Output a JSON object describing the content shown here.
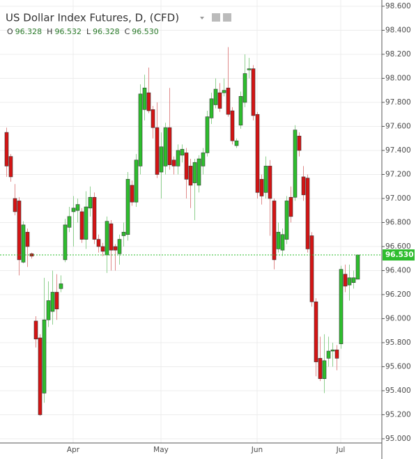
{
  "chart_data": {
    "type": "candlestick",
    "title": "US Dollar Index Futures, D, (CFD)",
    "ohlc_letters": [
      "O",
      "H",
      "L",
      "C"
    ],
    "ohlc_value_labels": [
      "96.328",
      "96.532",
      "96.328",
      "96.530"
    ],
    "last_price": {
      "value": 96.53,
      "label": "96.530"
    },
    "up_color": "#2ebd2e",
    "down_color": "#d41414",
    "grid": true,
    "categories": [
      null,
      null,
      null,
      null,
      null,
      null,
      null,
      null,
      null,
      null,
      null,
      null,
      null,
      null,
      null,
      null,
      "Apr",
      null,
      null,
      null,
      null,
      null,
      null,
      null,
      null,
      null,
      null,
      null,
      null,
      null,
      null,
      null,
      null,
      null,
      null,
      null,
      null,
      "May",
      null,
      null,
      null,
      null,
      null,
      null,
      null,
      null,
      null,
      null,
      null,
      null,
      null,
      null,
      null,
      null,
      null,
      null,
      null,
      null,
      null,
      null,
      "Jun",
      null,
      null,
      null,
      null,
      null,
      null,
      null,
      null,
      null,
      null,
      null,
      null,
      null,
      null,
      null,
      null,
      null,
      null,
      null,
      "Jul",
      null,
      null,
      null,
      null
    ],
    "open": [
      97.55,
      97.35,
      97.0,
      96.98,
      96.47,
      96.72,
      96.54,
      95.98,
      95.84,
      95.38,
      95.99,
      96.06,
      96.22,
      96.25,
      96.49,
      96.76,
      96.89,
      96.9,
      96.89,
      96.66,
      96.92,
      97.01,
      96.66,
      96.6,
      96.53,
      96.79,
      96.6,
      96.54,
      96.69,
      96.7,
      97.11,
      96.97,
      97.27,
      97.74,
      97.88,
      97.74,
      97.59,
      97.22,
      97.27,
      97.59,
      97.32,
      97.27,
      97.36,
      97.38,
      97.27,
      97.13,
      97.11,
      97.27,
      97.38,
      97.67,
      97.78,
      97.88,
      97.88,
      97.92,
      97.73,
      97.44,
      97.61,
      97.8,
      98.07,
      98.08,
      97.7,
      97.16,
      97.05,
      97.27,
      96.98,
      96.58,
      96.57,
      96.66,
      97.01,
      97.01,
      97.52,
      97.18,
      97.17,
      96.69,
      96.14,
      95.67,
      95.5,
      95.67,
      95.73,
      95.74,
      95.79,
      96.37,
      96.28,
      96.3,
      96.328
    ],
    "high": [
      97.59,
      97.37,
      97.12,
      97.01,
      96.81,
      96.75,
      96.55,
      96.02,
      95.87,
      96.34,
      96.31,
      96.4,
      96.37,
      96.36,
      96.83,
      96.93,
      97.02,
      97.0,
      96.92,
      97.06,
      97.1,
      97.05,
      96.7,
      96.63,
      96.85,
      96.82,
      96.62,
      96.7,
      96.8,
      97.22,
      97.15,
      97.37,
      97.95,
      98.03,
      98.09,
      97.77,
      97.8,
      97.55,
      97.63,
      97.92,
      97.35,
      97.45,
      97.45,
      97.42,
      97.33,
      97.33,
      97.36,
      97.42,
      97.73,
      97.88,
      98.0,
      97.96,
      98.0,
      98.26,
      97.76,
      97.5,
      97.89,
      98.2,
      98.17,
      98.11,
      97.72,
      97.2,
      97.35,
      97.32,
      97.0,
      96.8,
      96.75,
      97.02,
      97.1,
      97.61,
      97.55,
      97.27,
      97.2,
      96.72,
      96.17,
      95.85,
      95.87,
      95.85,
      95.8,
      95.78,
      96.44,
      96.45,
      96.45,
      96.4,
      96.532
    ],
    "low": [
      97.18,
      97.14,
      96.86,
      96.36,
      96.46,
      96.43,
      96.5,
      95.76,
      95.19,
      95.3,
      95.93,
      95.95,
      95.99,
      96.22,
      96.47,
      96.72,
      96.6,
      96.8,
      96.63,
      96.58,
      96.85,
      96.62,
      96.55,
      96.52,
      96.38,
      96.4,
      96.4,
      96.45,
      96.6,
      96.65,
      96.94,
      96.93,
      97.2,
      97.65,
      97.71,
      97.5,
      97.17,
      97.0,
      97.2,
      97.24,
      97.2,
      97.2,
      97.3,
      97.0,
      96.92,
      96.82,
      97.05,
      97.2,
      97.35,
      97.62,
      97.75,
      97.72,
      97.85,
      97.68,
      97.45,
      97.42,
      97.58,
      97.76,
      98.0,
      97.65,
      97.0,
      96.95,
      97.0,
      96.69,
      96.41,
      96.55,
      96.52,
      96.62,
      96.8,
      96.98,
      97.35,
      96.98,
      96.55,
      96.1,
      95.52,
      95.48,
      95.38,
      95.6,
      95.6,
      95.57,
      95.75,
      96.22,
      96.15,
      96.25,
      96.328
    ],
    "close": [
      97.27,
      97.18,
      96.89,
      96.49,
      96.78,
      96.6,
      96.52,
      95.83,
      95.2,
      95.99,
      96.15,
      96.22,
      96.08,
      96.29,
      96.78,
      96.85,
      96.92,
      96.95,
      96.66,
      96.93,
      97.01,
      96.66,
      96.6,
      96.56,
      96.81,
      96.57,
      96.57,
      96.66,
      96.72,
      97.16,
      96.97,
      97.32,
      97.87,
      97.92,
      97.73,
      97.59,
      97.2,
      97.43,
      97.59,
      97.28,
      97.27,
      97.4,
      97.41,
      97.16,
      97.11,
      97.3,
      97.33,
      97.38,
      97.68,
      97.83,
      97.91,
      97.75,
      97.9,
      97.7,
      97.48,
      97.48,
      97.85,
      98.04,
      98.08,
      97.69,
      97.05,
      97.02,
      97.27,
      97.0,
      96.49,
      96.72,
      96.7,
      96.98,
      96.85,
      97.57,
      97.4,
      97.03,
      96.58,
      96.14,
      95.64,
      95.5,
      95.65,
      95.73,
      95.74,
      95.67,
      96.41,
      96.27,
      96.34,
      96.34,
      96.53
    ],
    "ylim": [
      94.965,
      98.652
    ],
    "yticks": [
      {
        "value": 95,
        "label": "95.000"
      },
      {
        "value": 95.2,
        "label": "95.200"
      },
      {
        "value": 95.4,
        "label": "95.400"
      },
      {
        "value": 95.6,
        "label": "95.600"
      },
      {
        "value": 95.8,
        "label": "95.800"
      },
      {
        "value": 96,
        "label": "96.000"
      },
      {
        "value": 96.2,
        "label": "96.200"
      },
      {
        "value": 96.4,
        "label": "96.400"
      },
      {
        "value": 96.6,
        "label": "96.600"
      },
      {
        "value": 96.8,
        "label": "96.800"
      },
      {
        "value": 97,
        "label": "97.000"
      },
      {
        "value": 97.2,
        "label": "97.200"
      },
      {
        "value": 97.4,
        "label": "97.400"
      },
      {
        "value": 97.6,
        "label": "97.600"
      },
      {
        "value": 97.8,
        "label": "97.800"
      },
      {
        "value": 98,
        "label": "98.000"
      },
      {
        "value": 98.2,
        "label": "98.200"
      },
      {
        "value": 98.4,
        "label": "98.400"
      },
      {
        "value": 98.6,
        "label": "98.600"
      }
    ]
  }
}
